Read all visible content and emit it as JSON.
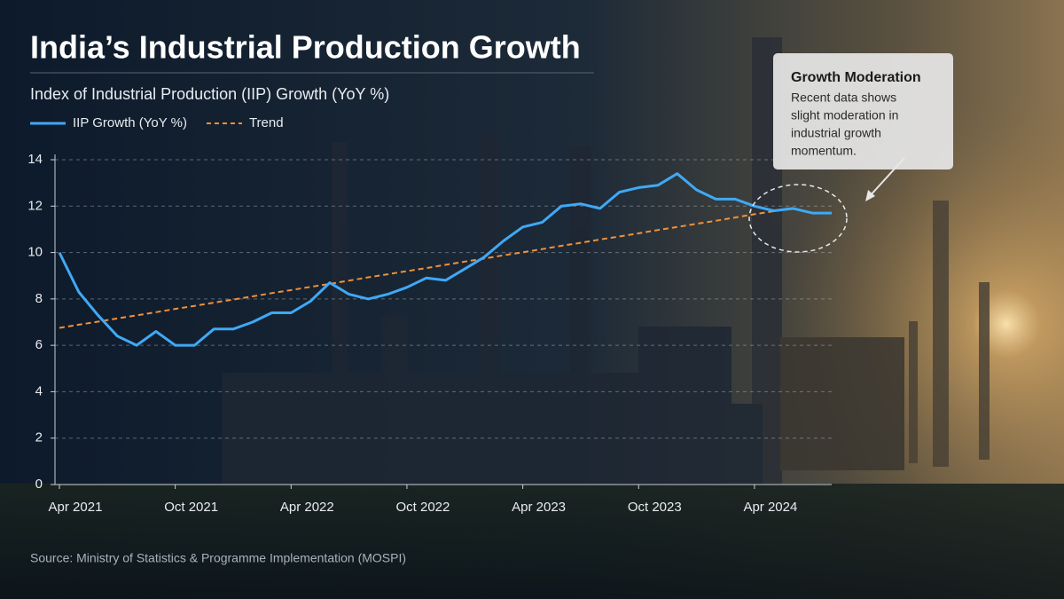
{
  "chart_data": {
    "type": "line",
    "title": "India’s Industrial Production Growth",
    "subtitle": "Index of Industrial Production (IIP) Growth (YoY %)",
    "categories": [
      "Apr 2021",
      null,
      null,
      null,
      null,
      null,
      "Oct 2021",
      null,
      null,
      null,
      null,
      null,
      "Apr 2022",
      null,
      null,
      null,
      null,
      null,
      "Oct 2022",
      null,
      null,
      null,
      null,
      null,
      "Apr 2023",
      null,
      null,
      null,
      null,
      null,
      "Oct 2023",
      null,
      null,
      null,
      null,
      null,
      "Apr 2024",
      null,
      null,
      null,
      null
    ],
    "series": [
      {
        "name": "IIP Growth (YoY %)",
        "color": "#3fa9f5",
        "dashed": false,
        "values": [
          10.0,
          8.3,
          7.3,
          6.4,
          6.0,
          6.6,
          6.0,
          6.0,
          6.7,
          6.7,
          7.0,
          7.4,
          7.4,
          7.9,
          8.7,
          8.2,
          8.0,
          8.2,
          8.5,
          8.9,
          8.8,
          9.3,
          9.8,
          10.5,
          11.1,
          11.3,
          12.0,
          12.1,
          11.9,
          12.6,
          12.8,
          12.9,
          13.4,
          12.7,
          12.3,
          12.3,
          12.0,
          11.8,
          11.9,
          11.7,
          11.7
        ]
      },
      {
        "name": "Trend",
        "color": "#f0913a",
        "dashed": true,
        "values": [
          6.75,
          6.89,
          7.02,
          7.16,
          7.29,
          7.43,
          7.57,
          7.7,
          7.84,
          7.97,
          8.11,
          8.25,
          8.38,
          8.52,
          8.65,
          8.79,
          8.93,
          9.06,
          9.2,
          9.33,
          9.47,
          9.61,
          9.74,
          9.88,
          10.01,
          10.15,
          10.29,
          10.42,
          10.56,
          10.69,
          10.83,
          10.97,
          11.1,
          11.24,
          11.37,
          11.51,
          11.65,
          11.78,
          11.92,
          null,
          null
        ]
      }
    ],
    "ylim": [
      0,
      14
    ],
    "yticks": [
      0,
      2,
      4,
      6,
      8,
      10,
      12,
      14
    ],
    "grid": true,
    "legend": "top-left",
    "annotation": {
      "title": "Growth Moderation",
      "lines": [
        "Recent data shows",
        "slight moderation in",
        "industrial growth",
        "momentum."
      ]
    },
    "source": "Source: Ministry of Statistics & Programme Implementation (MOSPI)"
  }
}
